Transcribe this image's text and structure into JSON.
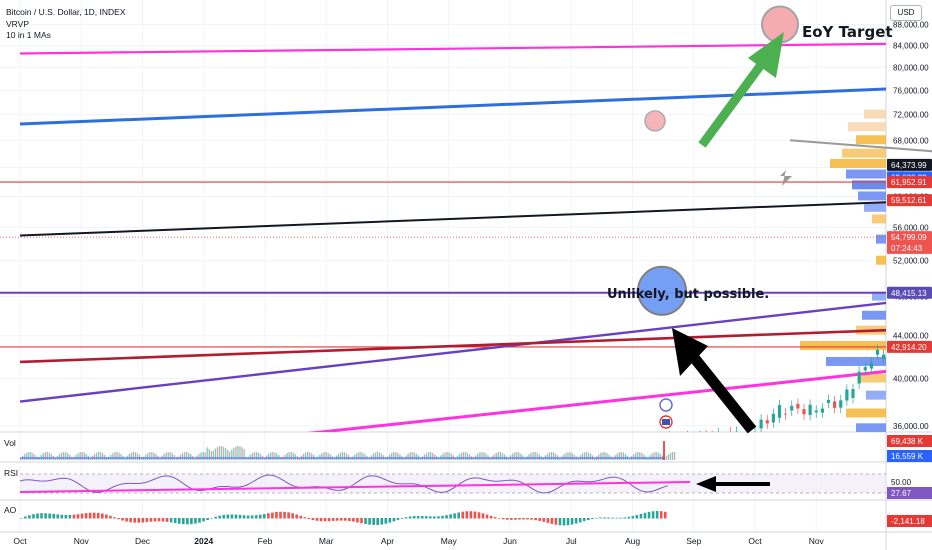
{
  "header": {
    "title": "Bitcoin / U.S. Dollar, 1D, INDEX",
    "indicator1": "VRVP",
    "indicator2": "10 in 1 MAs"
  },
  "currency": "USD",
  "panes": {
    "vol": "Vol",
    "rsi": "RSI",
    "ao": "AO"
  },
  "annotations": {
    "target": "EoY Target",
    "note": "Unlikely, but possible."
  },
  "colors": {
    "candle_up": "#26a69a",
    "candle_down": "#ef5350",
    "channel_fill": "#e1f2dc",
    "channel_line": "#e0406a",
    "magenta": "#ff33dd",
    "blue_trend": "#2e6fe0",
    "purple": "#6a3fc0",
    "darkred": "#b21c2e",
    "black": "#131722",
    "green_arrow": "#4caf50"
  },
  "chart_data": {
    "type": "candlestick",
    "symbol": "Bitcoin / U.S. Dollar",
    "interval": "1D",
    "y_axis": {
      "scale": "log",
      "range": [
        34000,
        90000
      ],
      "ticks": [
        36000,
        40000,
        44000,
        48000,
        52000,
        56000,
        60000,
        64000,
        68000,
        72000,
        76000,
        80000,
        84000,
        88000
      ],
      "tick_labels": [
        "36,000.00",
        "40,000.00",
        "44,000.00",
        "48,000.00",
        "52,000.00",
        "56,000.00",
        "60,000.00",
        "64,000.00",
        "68,000.00",
        "72,000.00",
        "76,000.00",
        "80,000.00",
        "84,000.00",
        "88,000.00"
      ]
    },
    "x_axis": {
      "labels": [
        "Oct",
        "Nov",
        "Dec",
        "2024",
        "Feb",
        "Mar",
        "Apr",
        "May",
        "Jun",
        "Jul",
        "Aug",
        "Sep",
        "Oct",
        "Nov"
      ]
    },
    "price_series": [
      [
        10,
        34500
      ],
      [
        12,
        35200
      ],
      [
        12.5,
        37400
      ],
      [
        13,
        37300
      ],
      [
        13.5,
        38000
      ],
      [
        14,
        41800
      ],
      [
        14.5,
        43500
      ],
      [
        15,
        42800
      ],
      [
        15.5,
        43800
      ],
      [
        16,
        42400
      ],
      [
        16.5,
        43500
      ],
      [
        17,
        44200
      ],
      [
        17.5,
        42500
      ],
      [
        18,
        39900
      ],
      [
        18.5,
        41800
      ],
      [
        19,
        42600
      ],
      [
        19.5,
        43400
      ],
      [
        20,
        48500
      ],
      [
        20.5,
        51800
      ],
      [
        21,
        51600
      ],
      [
        21.3,
        56000
      ],
      [
        21.6,
        61500
      ],
      [
        22,
        63000
      ],
      [
        22.4,
        68500
      ],
      [
        22.8,
        66500
      ],
      [
        23,
        69500
      ],
      [
        23.3,
        66000
      ],
      [
        23.6,
        68800
      ],
      [
        24,
        69000
      ],
      [
        24.3,
        70000
      ],
      [
        24.6,
        66000
      ],
      [
        24.8,
        67500
      ],
      [
        25,
        64000
      ],
      [
        25.3,
        63500
      ],
      [
        25.6,
        60000
      ],
      [
        25.8,
        62500
      ],
      [
        26,
        63800
      ],
      [
        26.3,
        61500
      ],
      [
        26.6,
        60200
      ],
      [
        27,
        62000
      ],
      [
        27.3,
        66500
      ],
      [
        27.6,
        69000
      ],
      [
        28,
        68800
      ],
      [
        28.3,
        70500
      ],
      [
        28.6,
        68500
      ],
      [
        29,
        67200
      ],
      [
        29.3,
        66000
      ],
      [
        29.6,
        64000
      ],
      [
        30,
        62000
      ],
      [
        30.3,
        58500
      ],
      [
        30.6,
        56000
      ],
      [
        30.8,
        55500
      ],
      [
        31,
        57000
      ],
      [
        31.2,
        60000
      ],
      [
        31.4,
        62500
      ],
      [
        31.6,
        66500
      ],
      [
        31.8,
        68000
      ],
      [
        32,
        69000
      ],
      [
        32.2,
        66500
      ],
      [
        32.4,
        66000
      ],
      [
        32.6,
        64300
      ],
      [
        32.8,
        61000
      ],
      [
        33,
        58000
      ],
      [
        33.2,
        53500
      ],
      [
        33.4,
        54800
      ]
    ],
    "overlay_lines": [
      {
        "kind": "channel-upper",
        "points": [
          [
            21,
            73000
          ],
          [
            39,
            67500
          ]
        ]
      },
      {
        "kind": "channel-lower",
        "points": [
          [
            21,
            59000
          ],
          [
            42,
            52500
          ]
        ]
      },
      {
        "kind": "magenta-upper",
        "points": [
          [
            0,
            82500
          ],
          [
            44.3,
            88200
          ]
        ]
      },
      {
        "kind": "blue-trend",
        "points": [
          [
            0,
            70500
          ],
          [
            44.3,
            90000
          ]
        ]
      },
      {
        "kind": "purple-trend",
        "points": [
          [
            0,
            38000
          ],
          [
            37,
            67500
          ]
        ]
      },
      {
        "kind": "black-upper",
        "points": [
          [
            0,
            55000
          ],
          [
            44.3,
            69400
          ]
        ]
      },
      {
        "kind": "darkred-trend",
        "points": [
          [
            0,
            41500
          ],
          [
            44.3,
            51800
          ]
        ]
      },
      {
        "kind": "black-lower",
        "points": [
          [
            22.8,
            33600
          ],
          [
            44.3,
            41300
          ]
        ]
      }
    ],
    "horizontal_levels": [
      61952.91,
      48415.13,
      42914.2
    ],
    "price_tags": [
      {
        "value": 64373.99,
        "label": "64,373.99",
        "color": "#131722"
      },
      {
        "value": 62600.23,
        "label": "62,600.23",
        "color": "#2962ff"
      },
      {
        "value": 61952.91,
        "label": "61,952.91",
        "color": "#e53935"
      },
      {
        "value": 59512.61,
        "label": "59,512.61",
        "color": "#e53935"
      },
      {
        "value": 54799.09,
        "label": "54,799.09",
        "color": "#ef5350"
      },
      {
        "value": 53500,
        "label": "07:24:43",
        "color": "#ef5350"
      },
      {
        "value": 48415.13,
        "label": "48,415.13",
        "color": "#5b4bb5"
      },
      {
        "value": 42914.2,
        "label": "42,914.20",
        "color": "#e53935"
      }
    ],
    "target_circle": {
      "value": 88000
    },
    "possible_circle": {
      "value": 48415.13
    },
    "volume_labels": [
      "69,438 K",
      "16,559 K"
    ],
    "rsi_labels": [
      "50.00",
      "27.67"
    ],
    "ao_label": "-2,141.18"
  }
}
